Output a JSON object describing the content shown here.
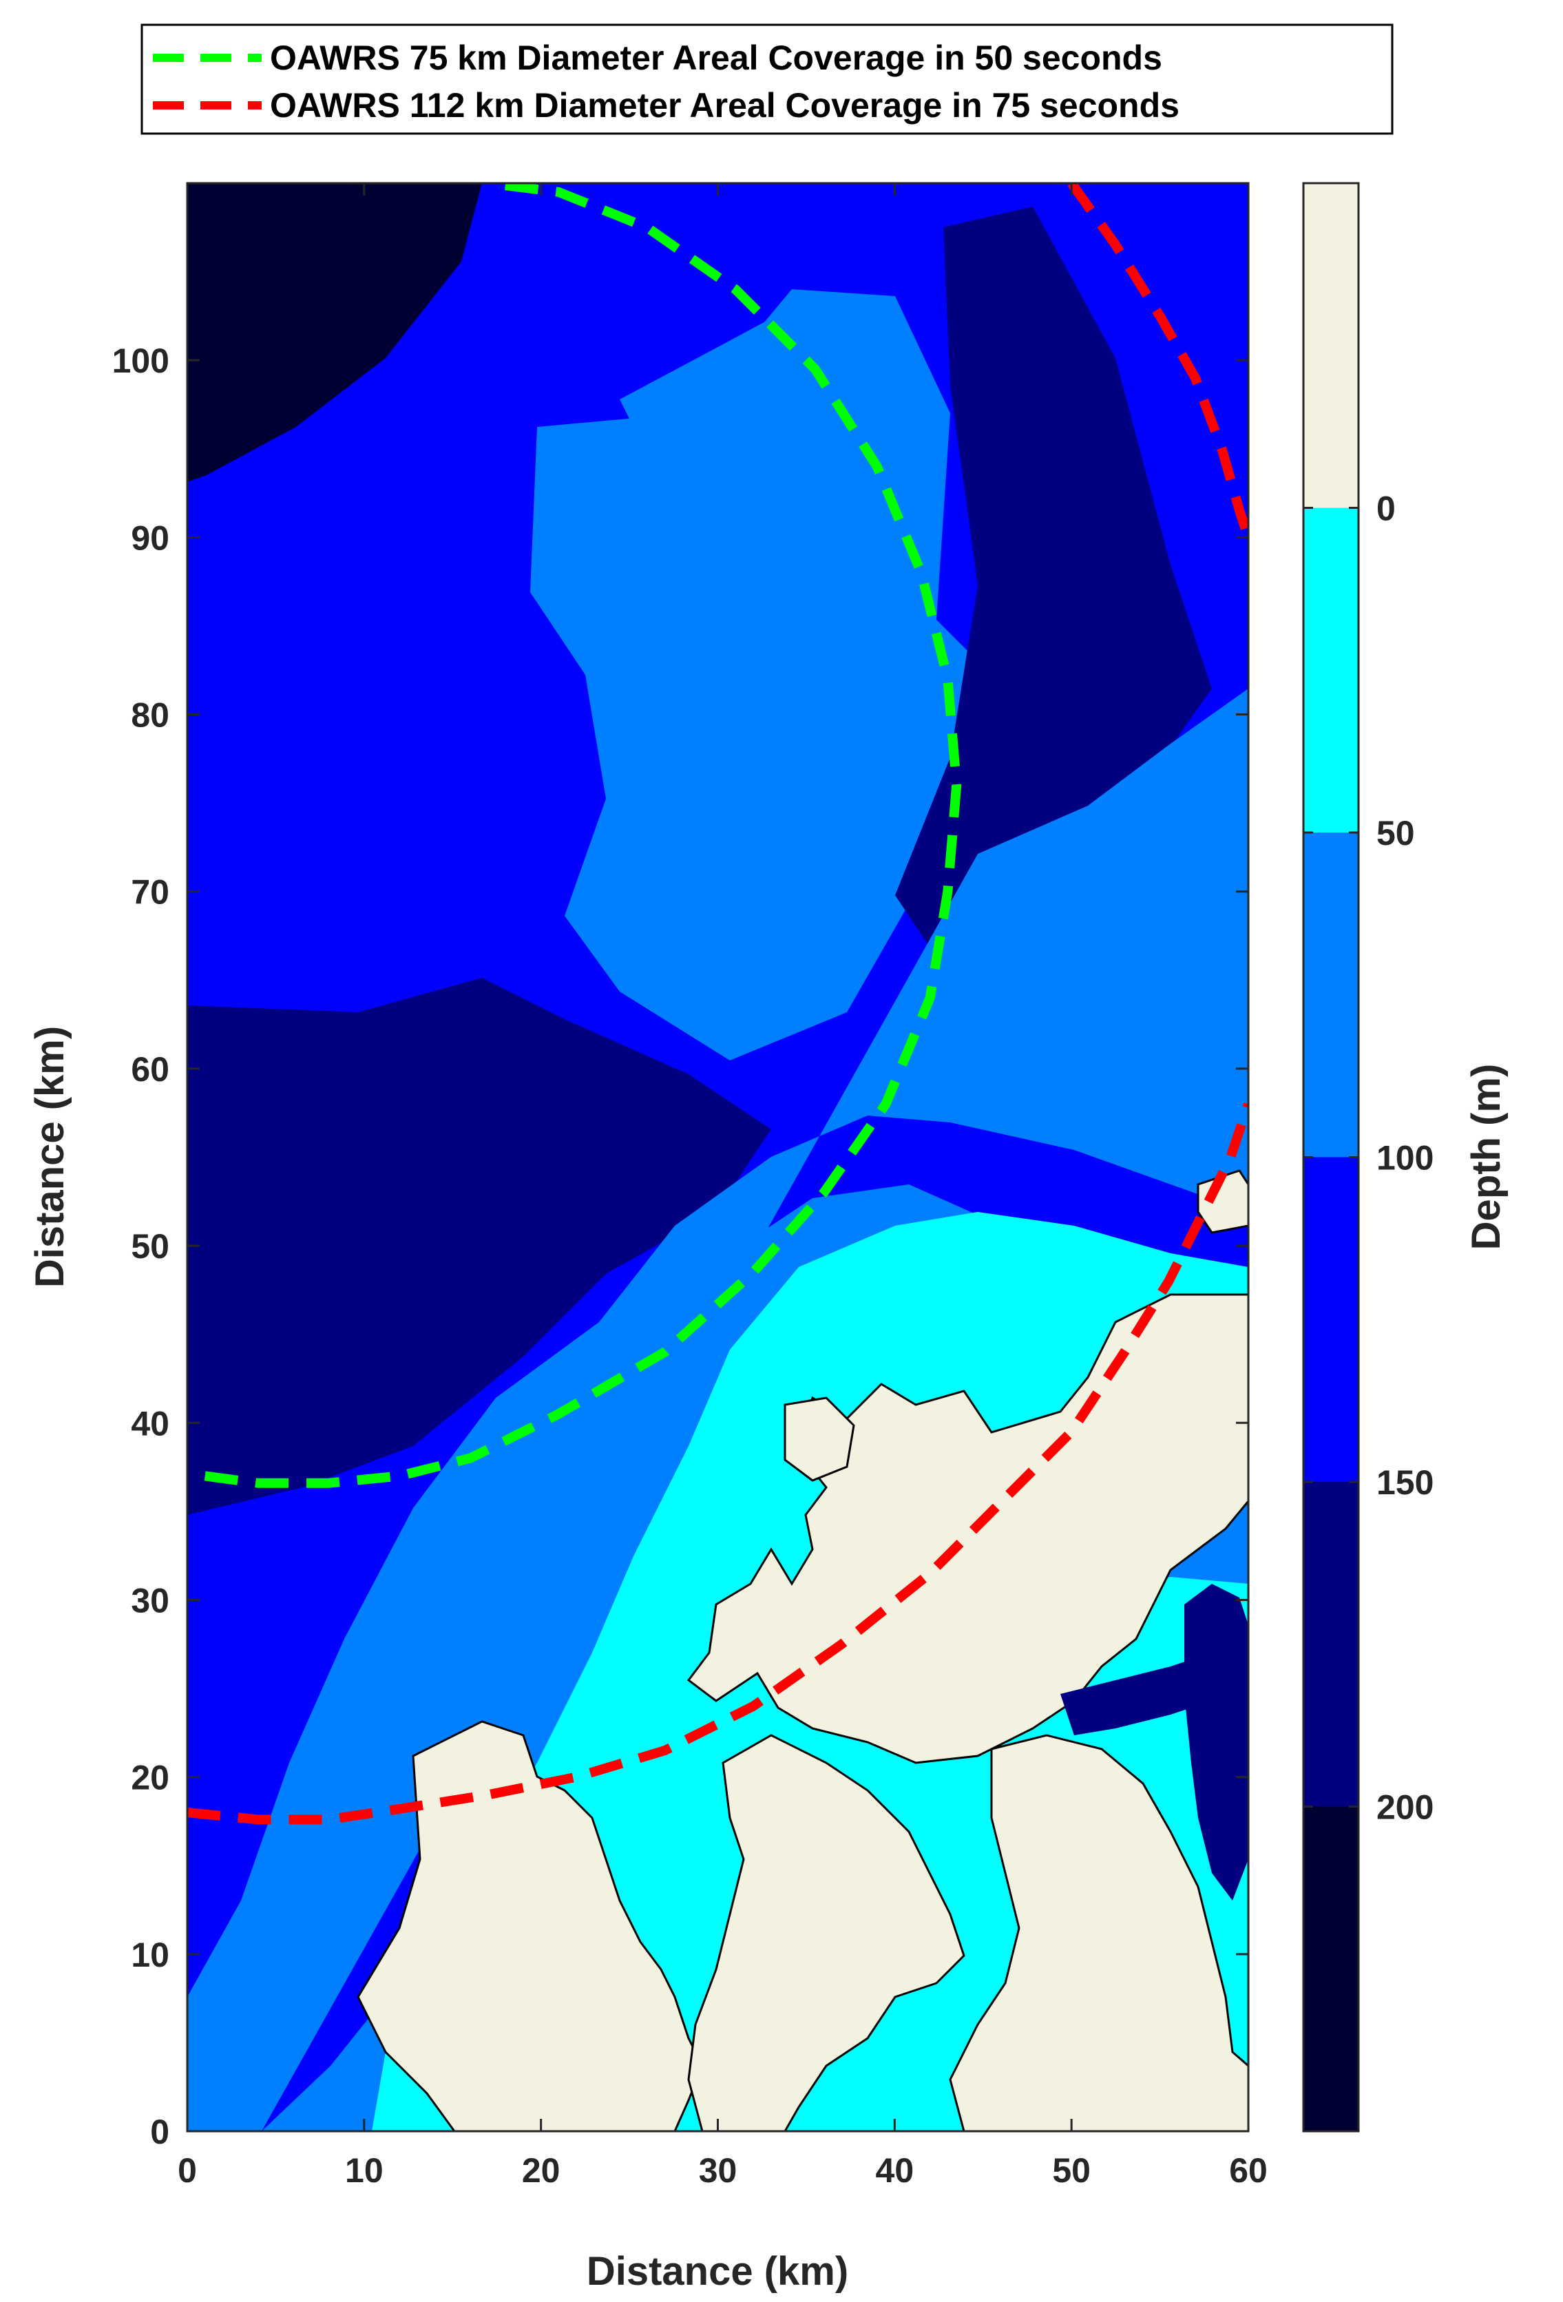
{
  "chart_data": {
    "type": "contour",
    "title": "",
    "xlabel": "Distance (km)",
    "ylabel": "Distance (km)",
    "xlim": [
      0,
      60
    ],
    "ylim": [
      0,
      110
    ],
    "x_ticks": [
      "0",
      "10",
      "20",
      "30",
      "40",
      "50",
      "60"
    ],
    "y_ticks": [
      "0",
      "10",
      "20",
      "30",
      "40",
      "50",
      "60",
      "70",
      "80",
      "90",
      "100"
    ],
    "grid": false,
    "legend_position": "top",
    "colorbar": {
      "label": "Depth (m)",
      "tick_labels": [
        "0",
        "50",
        "100",
        "150",
        "200"
      ],
      "levels": [
        {
          "range": "land",
          "color": "#f3f2e0"
        },
        {
          "range": "0-50",
          "color": "#00ffff"
        },
        {
          "range": "50-100",
          "color": "#0080ff"
        },
        {
          "range": "100-150",
          "color": "#0000ff"
        },
        {
          "range": "150-200",
          "color": "#000080"
        },
        {
          "range": ">200",
          "color": "#000033"
        }
      ]
    },
    "series": [
      {
        "name": "OAWRS 75 km Diameter Areal Coverage in 50 seconds",
        "color": "#00ff00",
        "style": "dashed",
        "points": [
          [
            1,
            37
          ],
          [
            4,
            36.6
          ],
          [
            8,
            36.6
          ],
          [
            12,
            37
          ],
          [
            16,
            38
          ],
          [
            21,
            40.5
          ],
          [
            27,
            44
          ],
          [
            32,
            48.5
          ],
          [
            36,
            53
          ],
          [
            39.5,
            58
          ],
          [
            42,
            64
          ],
          [
            43,
            70
          ],
          [
            43.5,
            76
          ],
          [
            43,
            82
          ],
          [
            41.5,
            88
          ],
          [
            39,
            94
          ],
          [
            35.5,
            99.5
          ],
          [
            31,
            104
          ],
          [
            26,
            107.5
          ],
          [
            21,
            109.5
          ],
          [
            17,
            110
          ]
        ]
      },
      {
        "name": "OAWRS 112 km Diameter Areal Coverage in 75 seconds",
        "color": "#ff0000",
        "style": "dashed",
        "points": [
          [
            0,
            18
          ],
          [
            4,
            17.6
          ],
          [
            8,
            17.6
          ],
          [
            12,
            18.2
          ],
          [
            17,
            19
          ],
          [
            22,
            20
          ],
          [
            27,
            21.5
          ],
          [
            32,
            24
          ],
          [
            37,
            27.5
          ],
          [
            42,
            31.5
          ],
          [
            46,
            35.5
          ],
          [
            50,
            39.5
          ],
          [
            53,
            44
          ],
          [
            55.5,
            48
          ],
          [
            57.5,
            52
          ],
          [
            59,
            55
          ],
          [
            60,
            58
          ]
        ]
      },
      {
        "name": "",
        "color": "#ff0000",
        "style": "dashed",
        "points": [
          [
            50,
            110
          ],
          [
            52.5,
            106.5
          ],
          [
            55,
            102.5
          ],
          [
            57,
            99
          ],
          [
            58.5,
            95
          ],
          [
            59.5,
            91.5
          ],
          [
            60,
            90
          ]
        ]
      }
    ]
  }
}
